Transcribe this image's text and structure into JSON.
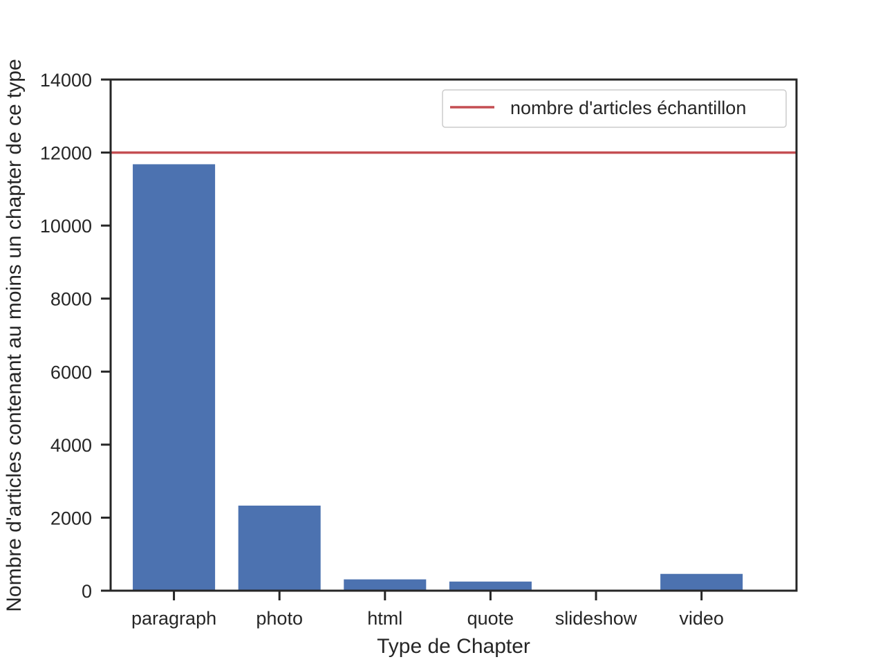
{
  "chart_data": {
    "type": "bar",
    "categories": [
      "paragraph",
      "photo",
      "html",
      "quote",
      "slideshow",
      "video"
    ],
    "values": [
      11680,
      2330,
      310,
      250,
      0,
      460
    ],
    "xlabel": "Type de Chapter",
    "ylabel": "Nombre d'articles contenant au moins un chapter de ce type",
    "ylim": [
      0,
      14000
    ],
    "yticks": [
      0,
      2000,
      4000,
      6000,
      8000,
      10000,
      12000,
      14000
    ],
    "reference_line": {
      "value": 12000,
      "label": "nombre d'articles échantillon"
    },
    "legend_position": "upper-right",
    "grid": false,
    "colors": {
      "bar": "#4c72b0",
      "reference_line": "#c44e52",
      "axes": "#262626"
    }
  }
}
